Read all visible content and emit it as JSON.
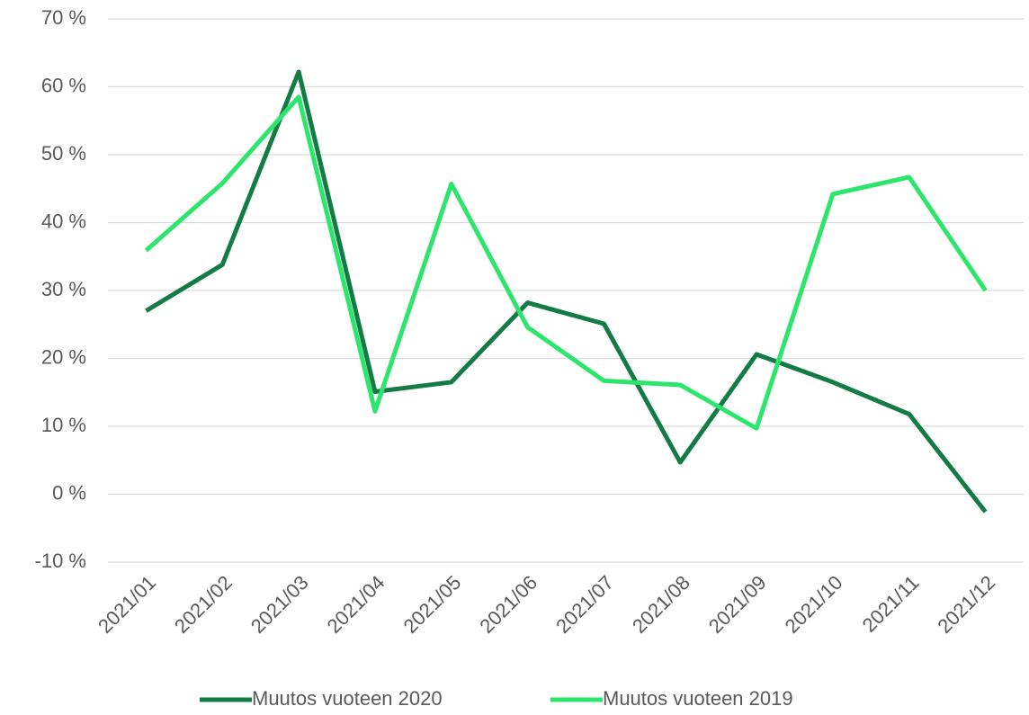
{
  "chart_data": {
    "type": "line",
    "categories": [
      "2021/01",
      "2021/02",
      "2021/03",
      "2021/04",
      "2021/05",
      "2021/06",
      "2021/07",
      "2021/08",
      "2021/09",
      "2021/10",
      "2021/11",
      "2021/12"
    ],
    "series": [
      {
        "name": "Muutos vuoteen 2020",
        "color": "#137b44",
        "values": [
          27,
          33.8,
          62.2,
          15.1,
          16.5,
          28.2,
          25.1,
          4.7,
          20.6,
          16.5,
          11.8,
          -2.6
        ]
      },
      {
        "name": "Muutos vuoteen 2019",
        "color": "#2ce66b",
        "values": [
          35.9,
          45.8,
          58.5,
          12.2,
          45.7,
          24.6,
          16.7,
          16.1,
          9.7,
          44.2,
          46.7,
          30
        ]
      }
    ],
    "ylim": [
      -10,
      70
    ],
    "yticks": [
      {
        "value": -10,
        "label": "-10 %"
      },
      {
        "value": 0,
        "label": "0 %"
      },
      {
        "value": 10,
        "label": "10 %"
      },
      {
        "value": 20,
        "label": "20 %"
      },
      {
        "value": 30,
        "label": "30 %"
      },
      {
        "value": 40,
        "label": "40 %"
      },
      {
        "value": 50,
        "label": "50 %"
      },
      {
        "value": 60,
        "label": "60 %"
      },
      {
        "value": 70,
        "label": "70 %"
      }
    ],
    "grid": true,
    "legend": "bottom"
  }
}
